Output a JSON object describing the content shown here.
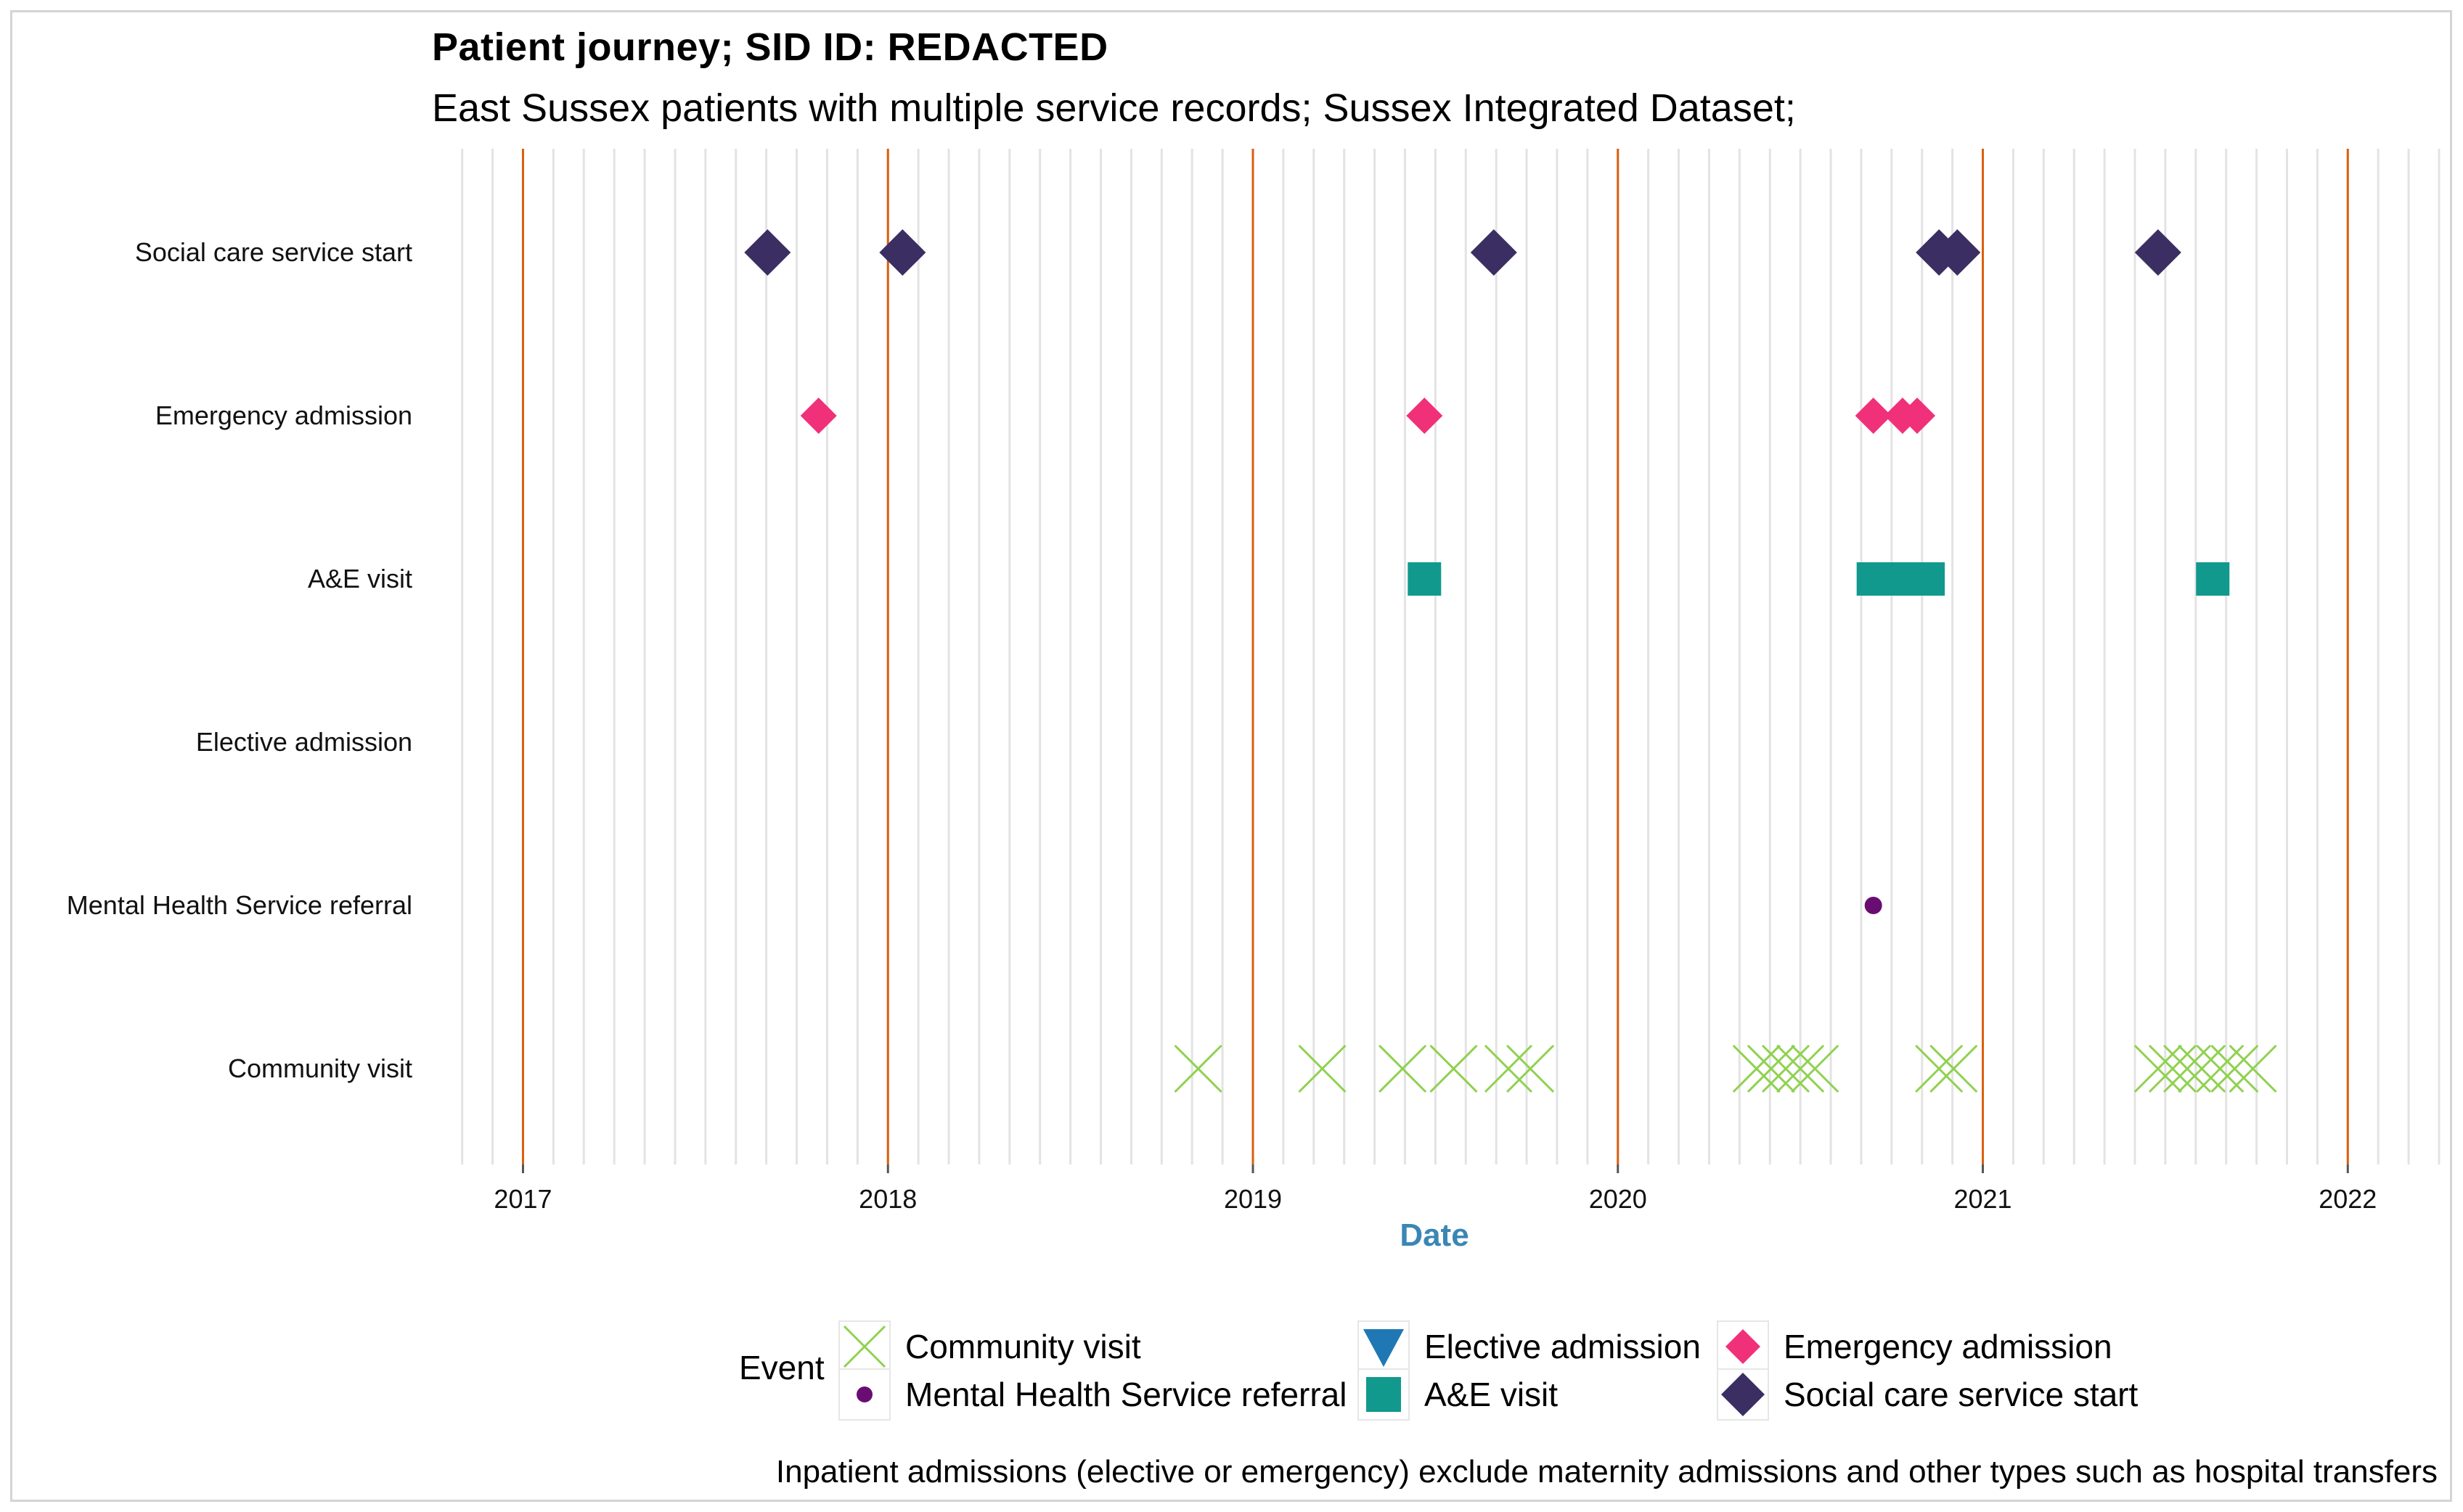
{
  "title": "Patient journey; SID ID: REDACTED",
  "subtitle": "East Sussex patients with multiple service records; Sussex Integrated Dataset;",
  "caption": "Inpatient admissions (elective or emergency) exclude maternity admissions and other types such as hospital transfers",
  "legend": {
    "title": "Event",
    "items": [
      {
        "label": "Community visit",
        "shape": "cross",
        "color": "#8fd14f"
      },
      {
        "label": "Mental Health Service referral",
        "shape": "circle",
        "color": "#6a0d72"
      },
      {
        "label": "Elective admission",
        "shape": "triangle-down",
        "color": "#1f78b4"
      },
      {
        "label": "A&E visit",
        "shape": "square",
        "color": "#11998e"
      },
      {
        "label": "Emergency admission",
        "shape": "diamond",
        "color": "#f0317a"
      },
      {
        "label": "Social care service start",
        "shape": "diamond",
        "color": "#3b2e63"
      }
    ]
  },
  "chart_data": {
    "type": "scatter",
    "title": "Patient journey; SID ID: REDACTED",
    "xlabel": "Date",
    "ylabel": "",
    "xlim": [
      2016.83,
      2022.26
    ],
    "x_ticks": [
      "2017",
      "2018",
      "2019",
      "2020",
      "2021",
      "2022"
    ],
    "categories": [
      "Social care service start",
      "Emergency admission",
      "A&E visit",
      "Elective admission",
      "Mental Health Service referral",
      "Community visit"
    ],
    "series": [
      {
        "name": "Social care service start",
        "shape": "diamond",
        "color": "#3b2e63",
        "values": [
          2017.67,
          2018.04,
          2019.66,
          2020.88,
          2020.93,
          2021.48
        ]
      },
      {
        "name": "Emergency admission",
        "shape": "diamond",
        "color": "#f0317a",
        "values": [
          2017.81,
          2019.47,
          2020.7,
          2020.78,
          2020.82
        ]
      },
      {
        "name": "A&E visit",
        "shape": "square",
        "color": "#11998e",
        "values": [
          2019.47,
          2020.7,
          2020.75,
          2020.8,
          2020.85,
          2021.63
        ]
      },
      {
        "name": "Elective admission",
        "shape": "triangle-down",
        "color": "#1f78b4",
        "values": []
      },
      {
        "name": "Mental Health Service referral",
        "shape": "circle",
        "color": "#6a0d72",
        "values": [
          2020.7
        ]
      },
      {
        "name": "Community visit",
        "shape": "cross",
        "color": "#8fd14f",
        "values": [
          2018.85,
          2019.19,
          2019.41,
          2019.55,
          2019.7,
          2019.76,
          2020.38,
          2020.42,
          2020.46,
          2020.5,
          2020.54,
          2020.88,
          2020.92,
          2021.48,
          2021.52,
          2021.56,
          2021.6,
          2021.65,
          2021.69,
          2021.74
        ]
      }
    ]
  }
}
